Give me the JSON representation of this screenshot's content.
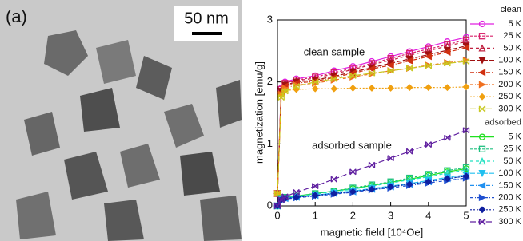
{
  "image": {
    "panel_label": "(a)",
    "scale_bar": "50 nm"
  },
  "chart_data": {
    "type": "line",
    "x_label": "magnetic field [10⁴Oe]",
    "y_label": "magnetization [emu/g]",
    "annotations": [
      "clean sample",
      "adsorbed sample"
    ],
    "xlim": [
      0,
      5
    ],
    "xticks": [
      0,
      1,
      2,
      3,
      4,
      5
    ],
    "ylim": [
      0,
      3
    ],
    "yticks": [
      0,
      1,
      2,
      3
    ],
    "x": [
      0,
      0.1,
      0.2,
      0.5,
      1,
      1.5,
      2,
      2.5,
      3,
      3.5,
      4,
      4.5,
      5
    ],
    "series_groups": [
      {
        "name": "clean",
        "series": [
          {
            "name": "5 K",
            "color": "#e020e0",
            "marker": "circle",
            "values": [
              0.2,
              1.9,
              2.0,
              2.05,
              2.1,
              2.18,
              2.25,
              2.33,
              2.41,
              2.49,
              2.57,
              2.65,
              2.72
            ]
          },
          {
            "name": "25 K",
            "color": "#d8206a",
            "marker": "square",
            "values": [
              0.2,
              1.88,
              1.98,
              2.03,
              2.08,
              2.15,
              2.22,
              2.3,
              2.38,
              2.46,
              2.53,
              2.6,
              2.68
            ]
          },
          {
            "name": "50 K",
            "color": "#c02040",
            "marker": "triangle",
            "values": [
              0.2,
              1.87,
              1.97,
              2.02,
              2.06,
              2.13,
              2.2,
              2.28,
              2.35,
              2.43,
              2.5,
              2.58,
              2.65
            ]
          },
          {
            "name": "100 K",
            "color": "#a01010",
            "marker": "triangle-down",
            "values": [
              0.2,
              1.85,
              1.95,
              2.0,
              2.03,
              2.09,
              2.16,
              2.23,
              2.3,
              2.37,
              2.44,
              2.51,
              2.58
            ]
          },
          {
            "name": "150 K",
            "color": "#d03010",
            "marker": "triangle-left",
            "values": [
              0.2,
              1.83,
              1.93,
              1.98,
              2.01,
              2.07,
              2.14,
              2.21,
              2.27,
              2.34,
              2.41,
              2.48,
              2.55
            ]
          },
          {
            "name": "200 K",
            "color": "#f07020",
            "marker": "triangle-right",
            "values": [
              0.2,
              1.8,
              1.9,
              1.95,
              1.98,
              2.03,
              2.08,
              2.13,
              2.18,
              2.22,
              2.27,
              2.31,
              2.35
            ]
          },
          {
            "name": "250 K",
            "color": "#f0a010",
            "marker": "diamond",
            "values": [
              0.2,
              1.78,
              1.86,
              1.88,
              1.89,
              1.89,
              1.9,
              1.9,
              1.9,
              1.91,
              1.91,
              1.91,
              1.92
            ]
          },
          {
            "name": "300 K",
            "color": "#c8c820",
            "marker": "cross",
            "values": [
              0.2,
              1.75,
              1.85,
              1.93,
              2.0,
              2.05,
              2.1,
              2.14,
              2.18,
              2.22,
              2.26,
              2.3,
              2.33
            ]
          }
        ]
      },
      {
        "name": "adsorbed",
        "series": [
          {
            "name": "5 K",
            "color": "#20e020",
            "marker": "circle",
            "values": [
              0,
              0.12,
              0.14,
              0.16,
              0.2,
              0.24,
              0.28,
              0.33,
              0.38,
              0.43,
              0.49,
              0.55,
              0.6
            ]
          },
          {
            "name": "25 K",
            "color": "#20c080",
            "marker": "square",
            "values": [
              0,
              0.12,
              0.14,
              0.16,
              0.2,
              0.24,
              0.29,
              0.34,
              0.39,
              0.45,
              0.51,
              0.57,
              0.62
            ]
          },
          {
            "name": "50 K",
            "color": "#20e0c0",
            "marker": "triangle",
            "values": [
              0,
              0.11,
              0.13,
              0.15,
              0.19,
              0.23,
              0.27,
              0.32,
              0.37,
              0.42,
              0.47,
              0.53,
              0.58
            ]
          },
          {
            "name": "100 K",
            "color": "#20c0f0",
            "marker": "triangle-down",
            "values": [
              0,
              0.1,
              0.12,
              0.14,
              0.17,
              0.21,
              0.24,
              0.28,
              0.32,
              0.36,
              0.41,
              0.46,
              0.5
            ]
          },
          {
            "name": "150 K",
            "color": "#2090f0",
            "marker": "triangle-left",
            "values": [
              0,
              0.1,
              0.12,
              0.14,
              0.17,
              0.2,
              0.23,
              0.27,
              0.31,
              0.35,
              0.39,
              0.44,
              0.48
            ]
          },
          {
            "name": "200 K",
            "color": "#2050d0",
            "marker": "triangle-right",
            "values": [
              0,
              0.09,
              0.11,
              0.13,
              0.16,
              0.19,
              0.22,
              0.26,
              0.29,
              0.33,
              0.37,
              0.41,
              0.45
            ]
          },
          {
            "name": "250 K",
            "color": "#1020a0",
            "marker": "diamond",
            "values": [
              0,
              0.1,
              0.12,
              0.14,
              0.17,
              0.2,
              0.23,
              0.27,
              0.31,
              0.35,
              0.39,
              0.44,
              0.48
            ]
          },
          {
            "name": "300 K",
            "color": "#6020a0",
            "marker": "cross",
            "values": [
              0,
              0.1,
              0.15,
              0.22,
              0.32,
              0.43,
              0.55,
              0.66,
              0.77,
              0.88,
              0.99,
              1.1,
              1.22
            ]
          }
        ]
      }
    ]
  }
}
